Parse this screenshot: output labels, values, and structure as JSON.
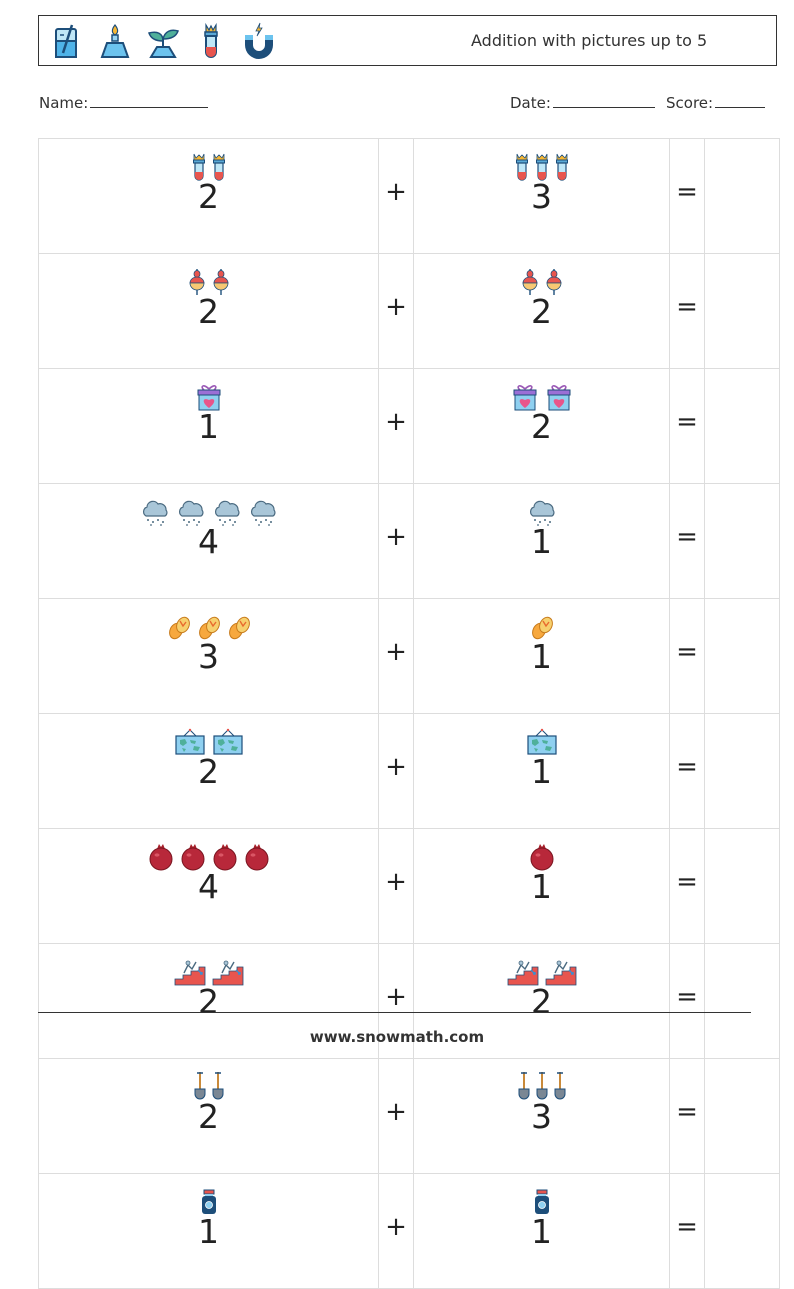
{
  "header": {
    "title": "Addition with pictures up to 5",
    "icons": [
      "beaker-icon",
      "bunsen-burner-icon",
      "sprout-flask-icon",
      "test-tube-icon",
      "magnet-icon"
    ]
  },
  "info": {
    "name_label": "Name:",
    "date_label": "Date:",
    "score_label": "Score:"
  },
  "rows": [
    {
      "a": "2",
      "a_icon": "test-tube-icon",
      "b": "3",
      "b_icon": "test-tube-icon"
    },
    {
      "a": "2",
      "a_icon": "fishing-float-icon",
      "b": "2",
      "b_icon": "fishing-float-icon"
    },
    {
      "a": "1",
      "a_icon": "gift-box-icon",
      "b": "2",
      "b_icon": "gift-box-icon"
    },
    {
      "a": "4",
      "a_icon": "rain-cloud-icon",
      "b": "1",
      "b_icon": "rain-cloud-icon"
    },
    {
      "a": "3",
      "a_icon": "flip-flops-icon",
      "b": "1",
      "b_icon": "flip-flops-icon"
    },
    {
      "a": "2",
      "a_icon": "world-map-icon",
      "b": "1",
      "b_icon": "world-map-icon"
    },
    {
      "a": "4",
      "a_icon": "pomegranate-icon",
      "b": "1",
      "b_icon": "pomegranate-icon"
    },
    {
      "a": "2",
      "a_icon": "stairs-icon",
      "b": "2",
      "b_icon": "stairs-icon"
    },
    {
      "a": "2",
      "a_icon": "shovel-icon",
      "b": "3",
      "b_icon": "shovel-icon"
    },
    {
      "a": "1",
      "a_icon": "potion-jar-icon",
      "b": "1",
      "b_icon": "potion-jar-icon"
    }
  ],
  "plus": "+",
  "equals": "=",
  "footer": "www.snowmath.com",
  "colors": {
    "border": "#333333",
    "grid": "#dddddd"
  }
}
